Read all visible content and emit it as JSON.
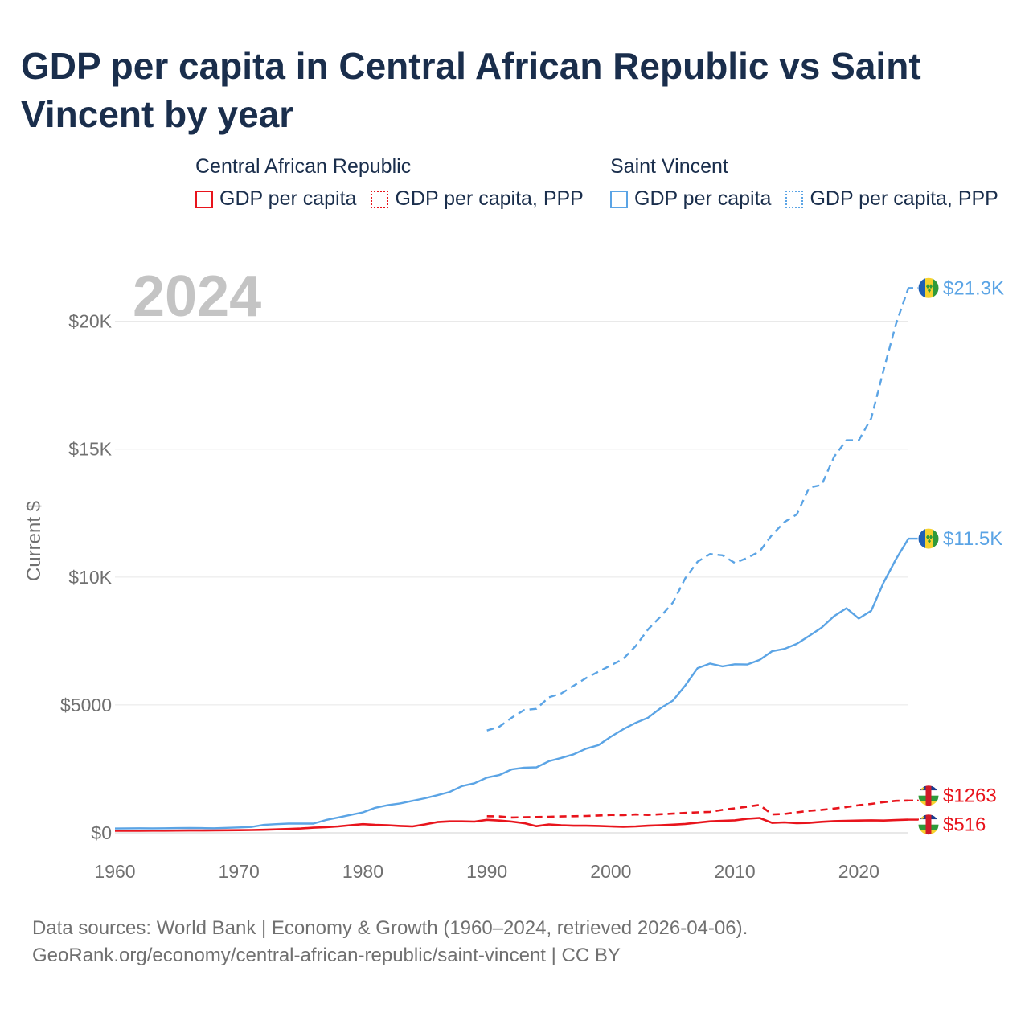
{
  "title": "GDP per capita in Central African Republic vs Saint Vincent by year",
  "legend": {
    "groups": [
      {
        "name": "Central African Republic",
        "color": "#e8141c",
        "items": [
          {
            "label": "GDP per capita",
            "style": "solid"
          },
          {
            "label": "GDP per capita, PPP",
            "style": "dotted"
          }
        ]
      },
      {
        "name": "Saint Vincent",
        "color": "#5ba4e5",
        "items": [
          {
            "label": "GDP per capita",
            "style": "solid"
          },
          {
            "label": "GDP per capita, PPP",
            "style": "dotted"
          }
        ]
      }
    ]
  },
  "year_watermark": "2024",
  "footer": {
    "line1": "Data sources: World Bank | Economy & Growth (1960–2024, retrieved 2026-04-06).",
    "line2": "GeoRank.org/economy/central-african-republic/saint-vincent | CC BY"
  },
  "chart_data": {
    "type": "line",
    "title": "GDP per capita in Central African Republic vs Saint Vincent by year",
    "xlabel": "",
    "ylabel": "Current $",
    "xlim": [
      1960,
      2024
    ],
    "ylim": [
      0,
      22000
    ],
    "x_ticks": [
      1960,
      1970,
      1980,
      1990,
      2000,
      2010,
      2020
    ],
    "x_tick_labels": [
      "1960",
      "1970",
      "1980",
      "1990",
      "2000",
      "2010",
      "2020"
    ],
    "y_ticks": [
      0,
      5000,
      10000,
      15000,
      20000
    ],
    "y_tick_labels": [
      "$0",
      "$5000",
      "$10K",
      "$15K",
      "$20K"
    ],
    "grid": true,
    "series": [
      {
        "name": "Saint Vincent GDP per capita, PPP",
        "country": "Saint Vincent",
        "metric": "GDP per capita, PPP",
        "color": "#5ba4e5",
        "dash": "dashed",
        "flag": "saint-vincent",
        "end_label": "$21.3K",
        "x": [
          1990,
          1991,
          1992,
          1993,
          1994,
          1995,
          1996,
          1997,
          1998,
          1999,
          2000,
          2001,
          2002,
          2003,
          2004,
          2005,
          2006,
          2007,
          2008,
          2009,
          2010,
          2011,
          2012,
          2013,
          2014,
          2015,
          2016,
          2017,
          2018,
          2019,
          2020,
          2021,
          2022,
          2023,
          2024
        ],
        "values": [
          4000,
          4150,
          4500,
          4800,
          4850,
          5300,
          5450,
          5750,
          6050,
          6300,
          6550,
          6800,
          7300,
          7950,
          8450,
          9000,
          9950,
          10600,
          10900,
          10850,
          10550,
          10750,
          11000,
          11650,
          12150,
          12450,
          13500,
          13600,
          14700,
          15350,
          15350,
          16200,
          18100,
          19900,
          21300
        ]
      },
      {
        "name": "Saint Vincent GDP per capita",
        "country": "Saint Vincent",
        "metric": "GDP per capita",
        "color": "#5ba4e5",
        "dash": "solid",
        "flag": "saint-vincent",
        "end_label": "$11.5K",
        "x": [
          1960,
          1961,
          1962,
          1963,
          1964,
          1965,
          1966,
          1967,
          1968,
          1969,
          1970,
          1971,
          1972,
          1973,
          1974,
          1975,
          1976,
          1977,
          1978,
          1979,
          1980,
          1981,
          1982,
          1983,
          1984,
          1985,
          1986,
          1987,
          1988,
          1989,
          1990,
          1991,
          1992,
          1993,
          1994,
          1995,
          1996,
          1997,
          1998,
          1999,
          2000,
          2001,
          2002,
          2003,
          2004,
          2005,
          2006,
          2007,
          2008,
          2009,
          2010,
          2011,
          2012,
          2013,
          2014,
          2015,
          2016,
          2017,
          2018,
          2019,
          2020,
          2021,
          2022,
          2023,
          2024
        ],
        "values": [
          170,
          175,
          180,
          175,
          180,
          185,
          190,
          185,
          180,
          195,
          210,
          230,
          310,
          340,
          360,
          360,
          360,
          500,
          600,
          700,
          800,
          980,
          1080,
          1150,
          1250,
          1350,
          1470,
          1600,
          1830,
          1940,
          2160,
          2260,
          2480,
          2550,
          2560,
          2800,
          2930,
          3070,
          3290,
          3430,
          3760,
          4050,
          4300,
          4500,
          4870,
          5170,
          5760,
          6440,
          6620,
          6510,
          6590,
          6580,
          6760,
          7100,
          7190,
          7390,
          7700,
          8020,
          8470,
          8780,
          8380,
          8680,
          9790,
          10700,
          11500
        ]
      },
      {
        "name": "Central African Republic GDP per capita, PPP",
        "country": "Central African Republic",
        "metric": "GDP per capita, PPP",
        "color": "#e8141c",
        "dash": "dashed",
        "flag": "central-african-republic",
        "end_label": "$1263",
        "x": [
          1990,
          1991,
          1992,
          1993,
          1994,
          1995,
          1996,
          1997,
          1998,
          1999,
          2000,
          2001,
          2002,
          2003,
          2004,
          2005,
          2006,
          2007,
          2008,
          2009,
          2010,
          2011,
          2012,
          2013,
          2014,
          2015,
          2016,
          2017,
          2018,
          2019,
          2020,
          2021,
          2022,
          2023,
          2024
        ],
        "values": [
          650,
          640,
          600,
          610,
          620,
          630,
          640,
          650,
          660,
          680,
          700,
          690,
          720,
          700,
          730,
          750,
          780,
          800,
          820,
          900,
          960,
          1020,
          1090,
          720,
          740,
          800,
          860,
          900,
          950,
          1010,
          1080,
          1130,
          1200,
          1250,
          1263
        ]
      },
      {
        "name": "Central African Republic GDP per capita",
        "country": "Central African Republic",
        "metric": "GDP per capita",
        "color": "#e8141c",
        "dash": "solid",
        "flag": "central-african-republic",
        "end_label": "$516",
        "x": [
          1960,
          1961,
          1962,
          1963,
          1964,
          1965,
          1966,
          1967,
          1968,
          1969,
          1970,
          1971,
          1972,
          1973,
          1974,
          1975,
          1976,
          1977,
          1978,
          1979,
          1980,
          1981,
          1982,
          1983,
          1984,
          1985,
          1986,
          1987,
          1988,
          1989,
          1990,
          1991,
          1992,
          1993,
          1994,
          1995,
          1996,
          1997,
          1998,
          1999,
          2000,
          2001,
          2002,
          2003,
          2004,
          2005,
          2006,
          2007,
          2008,
          2009,
          2010,
          2011,
          2012,
          2013,
          2014,
          2015,
          2016,
          2017,
          2018,
          2019,
          2020,
          2021,
          2022,
          2023,
          2024
        ],
        "values": [
          80,
          80,
          82,
          84,
          86,
          88,
          90,
          92,
          95,
          100,
          105,
          110,
          120,
          135,
          150,
          170,
          200,
          220,
          250,
          300,
          340,
          310,
          300,
          270,
          250,
          330,
          420,
          450,
          450,
          440,
          510,
          480,
          440,
          380,
          260,
          330,
          300,
          280,
          280,
          270,
          250,
          240,
          250,
          280,
          300,
          320,
          350,
          400,
          450,
          470,
          490,
          550,
          580,
          390,
          410,
          380,
          390,
          430,
          460,
          470,
          480,
          490,
          480,
          500,
          516
        ]
      }
    ]
  }
}
